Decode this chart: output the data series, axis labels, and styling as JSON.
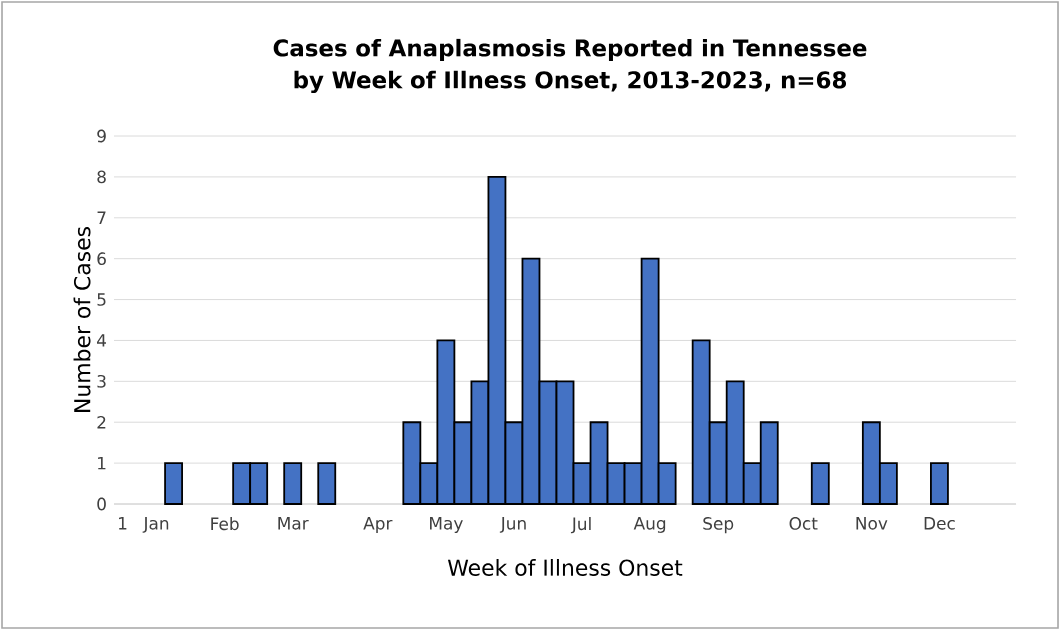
{
  "chart_data": {
    "type": "bar",
    "title": "Cases of Anaplasmosis Reported in Tennessee by Week of Illness Onset, 2013-2023, n=68",
    "xlabel": "Week of Illness Onset",
    "ylabel": "Number of Cases",
    "categories": [
      "1",
      null,
      "Jan",
      null,
      null,
      null,
      "Feb",
      null,
      null,
      null,
      "Mar",
      null,
      null,
      null,
      null,
      "Apr",
      null,
      null,
      null,
      "May",
      null,
      null,
      null,
      "Jun",
      null,
      null,
      null,
      "Jul",
      null,
      null,
      null,
      "Aug",
      null,
      null,
      null,
      "Sep",
      null,
      null,
      null,
      null,
      "Oct",
      null,
      null,
      null,
      "Nov",
      null,
      null,
      null,
      "Dec",
      null,
      null,
      null,
      null
    ],
    "values": [
      null,
      null,
      null,
      1,
      null,
      null,
      null,
      1,
      1,
      null,
      1,
      null,
      1,
      null,
      null,
      null,
      null,
      2,
      1,
      4,
      2,
      3,
      8,
      2,
      6,
      3,
      3,
      1,
      2,
      1,
      1,
      6,
      1,
      null,
      4,
      2,
      3,
      1,
      2,
      null,
      null,
      1,
      null,
      null,
      2,
      1,
      null,
      null,
      1,
      null,
      null,
      null,
      null
    ],
    "color": "#4472c4",
    "ylim": [
      0,
      9
    ],
    "yticks": [
      0,
      1,
      2,
      3,
      4,
      5,
      6,
      7,
      8,
      9
    ],
    "grid": "y"
  }
}
